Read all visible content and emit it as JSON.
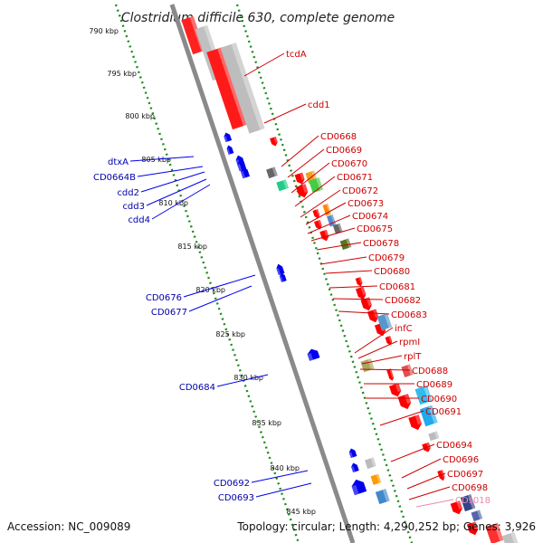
{
  "title": "Clostridium difficile 630, complete genome",
  "accession": "Accession: NC_009089",
  "topology": "Topology: circular; Length: 4,290,252 bp; Genes: 3,926",
  "colors": {
    "backbone": "#8a8a8a",
    "scale_dots": "#1e8a1e",
    "forward_genes": "#ff0000",
    "reverse_genes": "#0000ee",
    "right_labels": "#cc0000",
    "left_labels": "#0000aa",
    "ncrna_label": "#ee88aa"
  },
  "kbp_ticks": [
    {
      "label": "790 kbp"
    },
    {
      "label": "795 kbp"
    },
    {
      "label": "800 kbp"
    },
    {
      "label": "805 kbp"
    },
    {
      "label": "810 kbp"
    },
    {
      "label": "815 kbp"
    },
    {
      "label": "820 kbp"
    },
    {
      "label": "825 kbp"
    },
    {
      "label": "830 kbp"
    },
    {
      "label": "835 kbp"
    },
    {
      "label": "840 kbp"
    },
    {
      "label": "845 kbp"
    }
  ],
  "right_labels": [
    {
      "label": "tcdA"
    },
    {
      "label": "cdd1"
    },
    {
      "label": "CD0668"
    },
    {
      "label": "CD0669"
    },
    {
      "label": "CD0670"
    },
    {
      "label": "CD0671"
    },
    {
      "label": "CD0672"
    },
    {
      "label": "CD0673"
    },
    {
      "label": "CD0674"
    },
    {
      "label": "CD0675"
    },
    {
      "label": "CD0678"
    },
    {
      "label": "CD0679"
    },
    {
      "label": "CD0680"
    },
    {
      "label": "CD0681"
    },
    {
      "label": "CD0682"
    },
    {
      "label": "CD0683"
    },
    {
      "label": "infC"
    },
    {
      "label": "rpmI"
    },
    {
      "label": "rplT"
    },
    {
      "label": "CD0688"
    },
    {
      "label": "CD0689"
    },
    {
      "label": "CD0690"
    },
    {
      "label": "CD0691"
    },
    {
      "label": "CD0694"
    },
    {
      "label": "CD0696"
    },
    {
      "label": "CD0697"
    },
    {
      "label": "CD0698"
    },
    {
      "label": "CDs018"
    }
  ],
  "left_labels": [
    {
      "label": "dtxA"
    },
    {
      "label": "CD0664B"
    },
    {
      "label": "cdd2"
    },
    {
      "label": "cdd3"
    },
    {
      "label": "cdd4"
    },
    {
      "label": "CD0676"
    },
    {
      "label": "CD0677"
    },
    {
      "label": "CD0684"
    },
    {
      "label": "CD0692"
    },
    {
      "label": "CD0693"
    }
  ]
}
